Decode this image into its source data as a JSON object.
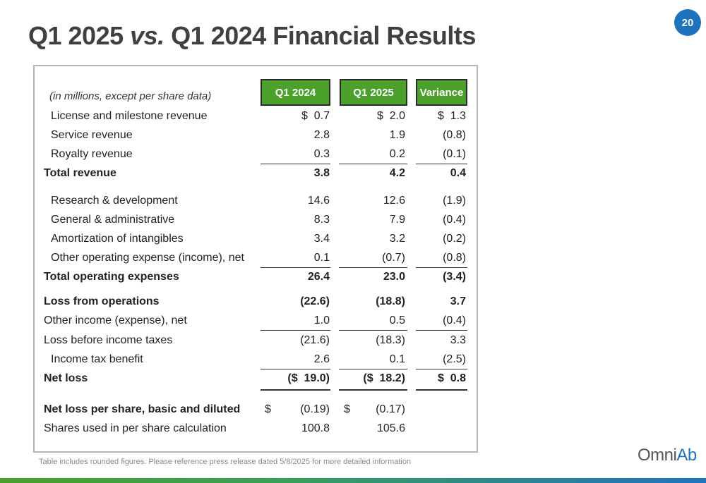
{
  "title": {
    "part1": "Q1 2025 ",
    "vs": "vs.",
    "part2": " Q1 2024 Financial Results"
  },
  "page_number": "20",
  "table": {
    "caption": "(in millions, except per share data)",
    "headers": [
      "Q1 2024",
      "Q1 2025",
      "Variance"
    ],
    "rows": [
      {
        "label": "License and milestone revenue",
        "q1_2024": "$  0.7",
        "q1_2025": "$  2.0",
        "variance": "$  1.3"
      },
      {
        "label": "Service revenue",
        "q1_2024": "2.8",
        "q1_2025": "1.9",
        "variance": "(0.8)"
      },
      {
        "label": "Royalty revenue",
        "q1_2024": "0.3",
        "q1_2025": "0.2",
        "variance": "(0.1)"
      },
      {
        "label": "Total revenue",
        "q1_2024": "3.8",
        "q1_2025": "4.2",
        "variance": "0.4"
      },
      {
        "label": "Research & development",
        "q1_2024": "14.6",
        "q1_2025": "12.6",
        "variance": "(1.9)"
      },
      {
        "label": "General & administrative",
        "q1_2024": "8.3",
        "q1_2025": "7.9",
        "variance": "(0.4)"
      },
      {
        "label": "Amortization of intangibles",
        "q1_2024": "3.4",
        "q1_2025": "3.2",
        "variance": "(0.2)"
      },
      {
        "label": "Other operating expense (income), net",
        "q1_2024": "0.1",
        "q1_2025": "(0.7)",
        "variance": "(0.8)"
      },
      {
        "label": "Total operating expenses",
        "q1_2024": "26.4",
        "q1_2025": "23.0",
        "variance": "(3.4)"
      },
      {
        "label": "Loss from operations",
        "q1_2024": "(22.6)",
        "q1_2025": "(18.8)",
        "variance": "3.7"
      },
      {
        "label": "Other income (expense), net",
        "q1_2024": "1.0",
        "q1_2025": "0.5",
        "variance": "(0.4)"
      },
      {
        "label": "Loss before income taxes",
        "q1_2024": "(21.6)",
        "q1_2025": "(18.3)",
        "variance": "3.3"
      },
      {
        "label": "Income tax benefit",
        "q1_2024": "2.6",
        "q1_2025": "0.1",
        "variance": "(2.5)"
      },
      {
        "label": "Net loss",
        "q1_2024": "($  19.0)",
        "q1_2025": "($  18.2)",
        "variance": "$  0.8"
      },
      {
        "label": "Net loss per share, basic and diluted",
        "dollar": "$",
        "q1_2024": "(0.19)",
        "q1_2025": "(0.17)",
        "variance": ""
      },
      {
        "label": "Shares used in per share calculation",
        "q1_2024": "100.8",
        "q1_2025": "105.6",
        "variance": ""
      }
    ]
  },
  "footnote": "Table includes rounded figures. Please reference press release dated 5/8/2025 for more detailed information",
  "logo": {
    "part1": "Omni",
    "part2": "Ab"
  },
  "colors": {
    "header_green": "#4ca12c",
    "badge_blue": "#1e73be",
    "title_gray": "#404040"
  }
}
